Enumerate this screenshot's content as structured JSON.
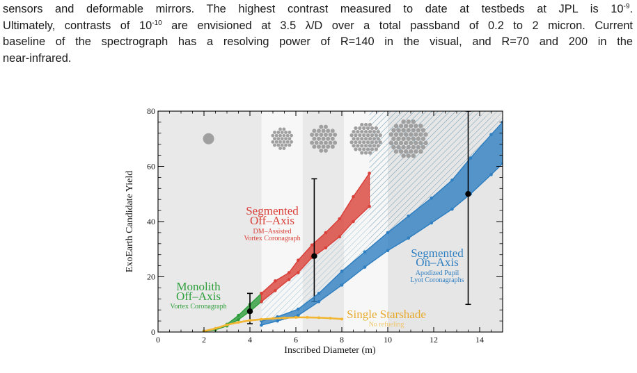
{
  "paragraph": {
    "l1_a": "sensors and deformable mirrors. The highest contrast measured to date at testbeds at JPL is 10",
    "l1_sup": "-9",
    "l1_b": ".",
    "l2_a": "Ultimately, contrasts of 10",
    "l2_sup": "-10",
    "l2_b": " are envisioned at 3.5 λ/D over a total passband of 0.2 to 2 micron. Current",
    "l3": "baseline of the spectrograph has a resolving power of R=140 in the visual, and R=70 and 200 in the",
    "l4": "near-infrared."
  },
  "chart_data": {
    "type": "line",
    "xlabel": "Inscribed Diameter (m)",
    "ylabel": "ExoEarth Candidate Yield",
    "xlim": [
      0,
      15
    ],
    "ylim": [
      0,
      80
    ],
    "x_ticks": [
      "0",
      "2",
      "4",
      "6",
      "8",
      "10",
      "12",
      "14"
    ],
    "y_ticks": [
      "0",
      "20",
      "40",
      "60",
      "80"
    ],
    "series": [
      {
        "id": "monolith",
        "color": "#2e9e3c",
        "upper": [
          [
            2,
            0.3
          ],
          [
            2.5,
            1.2
          ],
          [
            3,
            2.8
          ],
          [
            3.5,
            6.0
          ],
          [
            4,
            10.0
          ],
          [
            4.5,
            14.0
          ]
        ],
        "lower": [
          [
            2,
            0.2
          ],
          [
            2.5,
            0.8
          ],
          [
            3,
            2.2
          ],
          [
            3.5,
            4.5
          ],
          [
            4,
            7.5
          ],
          [
            4.5,
            11.0
          ]
        ],
        "point": [
          4,
          7.5
        ],
        "error": [
          3,
          14
        ]
      },
      {
        "id": "seg-off",
        "color": "#d9413a",
        "upper": [
          [
            4.5,
            14
          ],
          [
            5.1,
            18.5
          ],
          [
            5.7,
            21.5
          ],
          [
            6.1,
            26
          ],
          [
            6.7,
            31.5
          ],
          [
            7.3,
            36
          ],
          [
            7.9,
            41
          ],
          [
            8.5,
            49
          ],
          [
            9.2,
            57.5
          ]
        ],
        "lower": [
          [
            4.5,
            11
          ],
          [
            5.1,
            15
          ],
          [
            5.7,
            19
          ],
          [
            6.1,
            21.5
          ],
          [
            6.7,
            27
          ],
          [
            7.3,
            30.5
          ],
          [
            7.9,
            34.5
          ],
          [
            8.5,
            40
          ],
          [
            9.2,
            45.5
          ]
        ],
        "point": [
          6.8,
          27.5
        ],
        "error": [
          11,
          55.5
        ]
      },
      {
        "id": "seg-on",
        "color": "#2f7fc1",
        "upper": [
          [
            4.5,
            4
          ],
          [
            5.2,
            5.5
          ],
          [
            6.1,
            8.3
          ],
          [
            7.0,
            14.0
          ],
          [
            8.0,
            22.0
          ],
          [
            9.0,
            29.0
          ],
          [
            10.0,
            36.0
          ],
          [
            10.9,
            42.0
          ],
          [
            11.9,
            48.5
          ],
          [
            12.8,
            55.0
          ],
          [
            13.6,
            63.0
          ],
          [
            14.5,
            71.5
          ],
          [
            15,
            76
          ]
        ],
        "lower": [
          [
            4.5,
            2.5
          ],
          [
            5.2,
            4.0
          ],
          [
            6.1,
            6.0
          ],
          [
            7.0,
            11.0
          ],
          [
            8.0,
            17.0
          ],
          [
            9.0,
            23.5
          ],
          [
            10.0,
            29.5
          ],
          [
            10.9,
            34.0
          ],
          [
            11.9,
            39.5
          ],
          [
            12.8,
            44.5
          ],
          [
            13.6,
            50.0
          ],
          [
            14.5,
            57.0
          ],
          [
            15,
            61
          ]
        ],
        "point": [
          13.5,
          50
        ],
        "error": [
          10,
          80
        ]
      },
      {
        "id": "starshade",
        "color": "#f2b632",
        "values": [
          [
            2,
            0.3
          ],
          [
            2.5,
            1.3
          ],
          [
            3,
            2.6
          ],
          [
            3.5,
            3.5
          ],
          [
            4,
            4.2
          ],
          [
            4.5,
            4.6
          ],
          [
            5,
            4.9
          ],
          [
            5.5,
            5.1
          ],
          [
            6,
            5.3
          ],
          [
            6.5,
            5.3
          ],
          [
            7,
            5.2
          ],
          [
            7.5,
            5.0
          ],
          [
            8,
            4.7
          ]
        ]
      }
    ],
    "labels": {
      "monolith": [
        "Monolith",
        "Off–Axis",
        "Vortex Coronagraph"
      ],
      "seg_off": [
        "Segmented",
        "Off–Axis",
        "DM–Assisted",
        "Vortex Coronagraph"
      ],
      "seg_on": [
        "Segmented",
        "On–Axis",
        "Apodized Pupil",
        "Lyot Coronagraphs"
      ],
      "starshade": [
        "Single Starshade",
        "No refueling"
      ]
    },
    "colors": {
      "green": "#2e9e3c",
      "red": "#d9413a",
      "blue": "#2f7fc1",
      "orange": "#f2b632",
      "mirror": "#a0a0a0"
    }
  }
}
